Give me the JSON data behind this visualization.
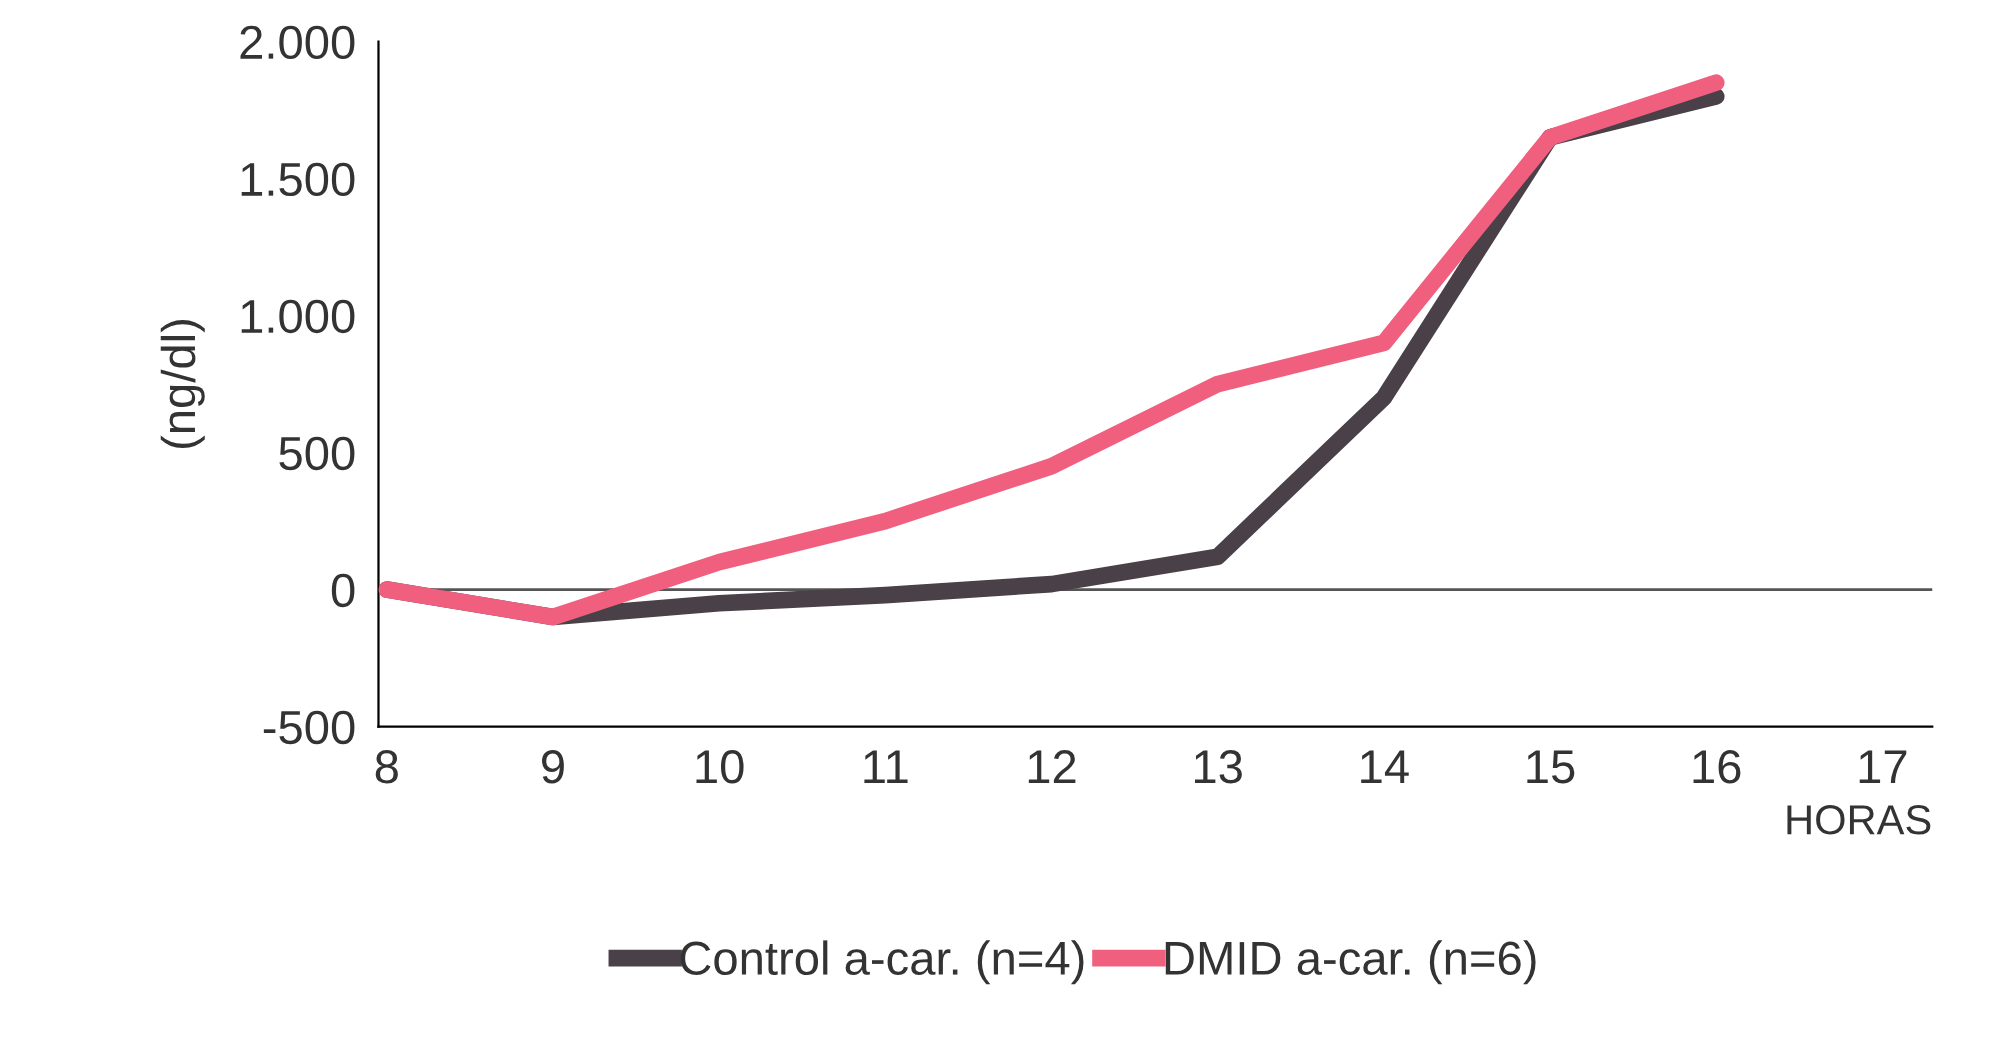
{
  "chart_data": {
    "type": "line",
    "xlabel": "HORAS",
    "ylabel": "(ng/dl)",
    "categories": [
      "8",
      "9",
      "10",
      "11",
      "12",
      "13",
      "14",
      "15",
      "16",
      "17"
    ],
    "series": [
      {
        "name": "Control a-car. (n=4)",
        "color": "#4a4048",
        "values": [
          0,
          -100,
          -50,
          -20,
          20,
          120,
          700,
          1650,
          1800,
          null
        ]
      },
      {
        "name": "DMID a-car. (n=6)",
        "color": "#f0607e",
        "values": [
          0,
          -100,
          100,
          250,
          450,
          750,
          900,
          1650,
          1850,
          null
        ]
      }
    ],
    "ylim": [
      -500,
      2000
    ],
    "yticks": [
      {
        "value": -500,
        "label": "-500"
      },
      0,
      500,
      {
        "value": 1000,
        "label": "1.000"
      },
      {
        "value": 1500,
        "label": "1.500"
      },
      {
        "value": 2000,
        "label": "2.000"
      }
    ],
    "ref_lines": [
      {
        "axis": "y",
        "value": 0,
        "color": "#555555"
      }
    ],
    "grid": false,
    "legend": "bottom",
    "line_style": "solid",
    "marker": "none"
  }
}
